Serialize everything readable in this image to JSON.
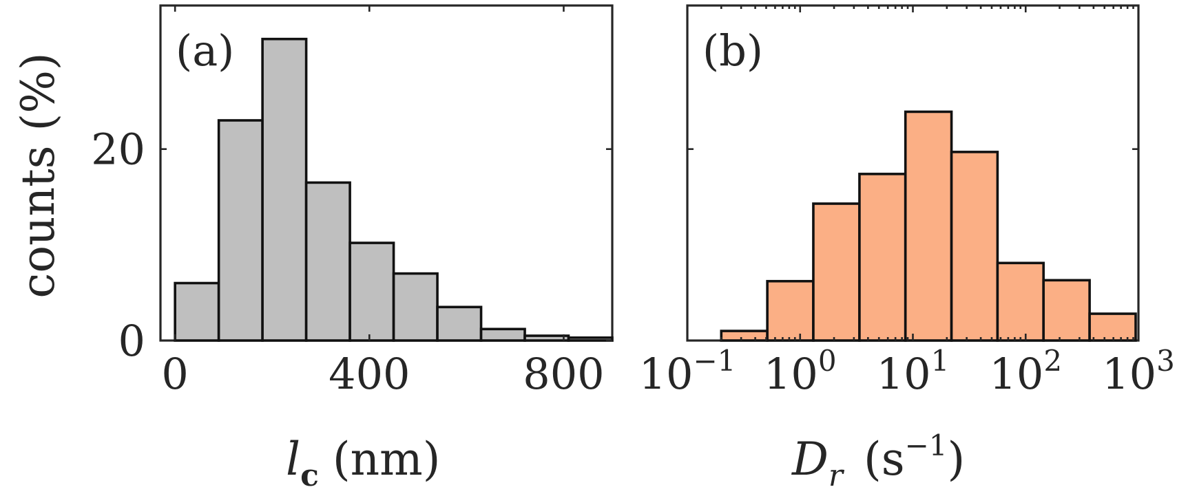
{
  "ylabel": "counts (%)",
  "chart_data": [
    {
      "type": "bar",
      "panel": "(a)",
      "title": "",
      "xlabel_var": "l",
      "xlabel_sub": "c",
      "xlabel_unit": "(nm)",
      "ylabel": "counts (%)",
      "xlim": [
        -30,
        900
      ],
      "ylim": [
        0,
        35
      ],
      "xticks": [
        0,
        400,
        800
      ],
      "xtick_labels": [
        "0",
        "400",
        "800"
      ],
      "yticks": [
        0,
        20
      ],
      "ytick_labels": [
        "0",
        "20"
      ],
      "bin_edges": [
        0,
        90,
        180,
        270,
        360,
        450,
        540,
        630,
        720,
        810,
        900
      ],
      "values": [
        6,
        23,
        31.5,
        16.5,
        10.2,
        7,
        3.5,
        1.2,
        0.5,
        0.3
      ],
      "bar_color": "#bfbfbf",
      "edge_color": "#111111"
    },
    {
      "type": "bar",
      "panel": "(b)",
      "title": "",
      "xscale": "log",
      "xlabel_var": "D",
      "xlabel_sub": "r",
      "xlabel_unit_pre": "(s",
      "xlabel_unit_sup": "−1",
      "xlabel_unit_post": ")",
      "xlim": [
        0.1,
        1000
      ],
      "ylim": [
        0,
        35
      ],
      "xtick_bases": [
        "10",
        "10",
        "10",
        "10",
        "10"
      ],
      "xtick_exps": [
        "−1",
        "0",
        "1",
        "2",
        "3"
      ],
      "xtick_values": [
        0.1,
        1,
        10,
        100,
        1000
      ],
      "bin_edges": [
        0.2,
        0.512,
        1.31,
        3.36,
        8.59,
        22.0,
        56.3,
        144,
        369,
        945
      ],
      "values": [
        1,
        6.2,
        14.3,
        17.4,
        23.9,
        19.7,
        8.1,
        6.3,
        2.8
      ],
      "bar_color": "#fbaf85",
      "edge_color": "#111111"
    }
  ]
}
